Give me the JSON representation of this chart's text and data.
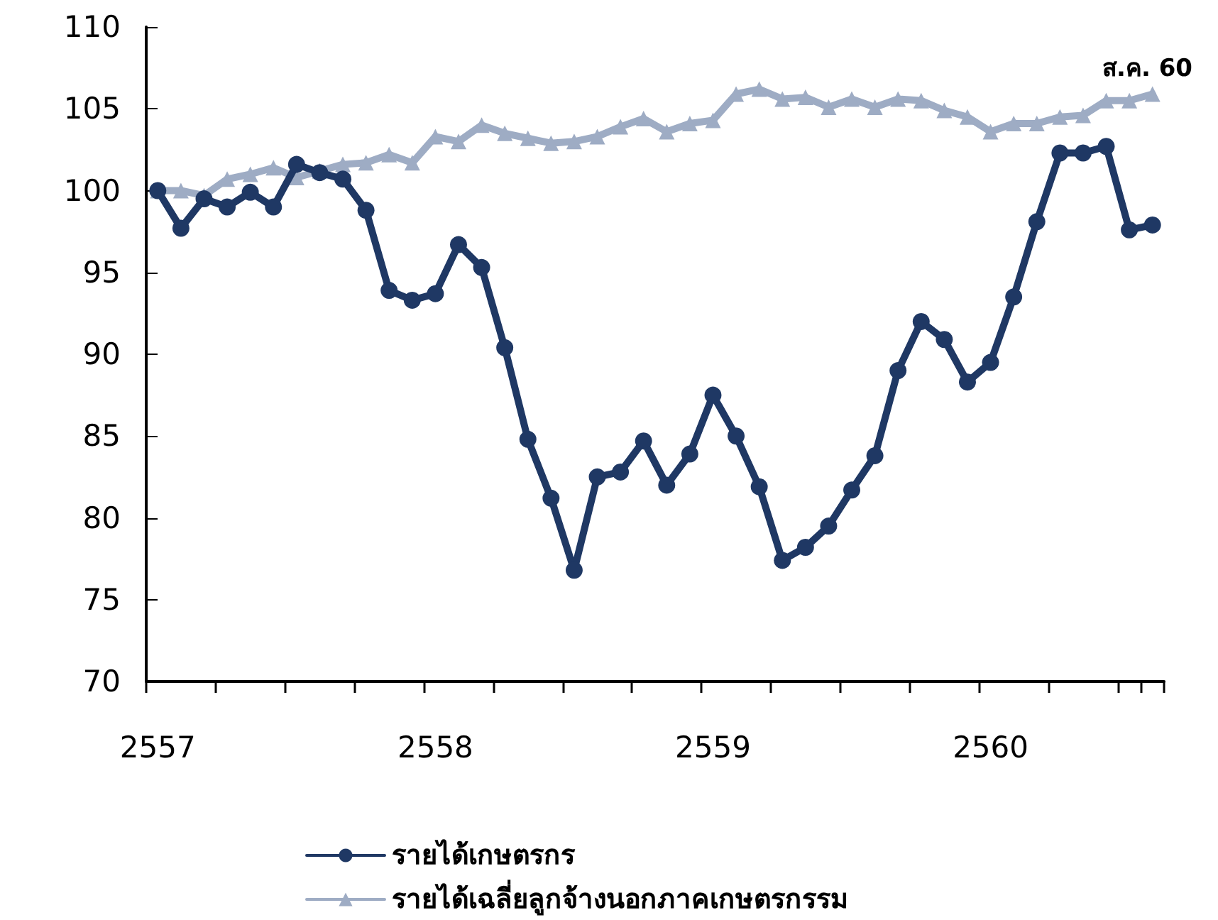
{
  "chart_data": {
    "type": "line",
    "annotations": [
      "ส.ค. 60"
    ],
    "categories": [
      "2557",
      null,
      null,
      null,
      null,
      null,
      null,
      null,
      null,
      null,
      null,
      null,
      "2558",
      null,
      null,
      null,
      null,
      null,
      null,
      null,
      null,
      null,
      null,
      null,
      "2559",
      null,
      null,
      null,
      null,
      null,
      null,
      null,
      null,
      null,
      null,
      null,
      "2560",
      null,
      null,
      null,
      null,
      null,
      null,
      null
    ],
    "series": [
      {
        "name": "รายได้เกษตรกร",
        "color": "#1f3864",
        "marker": "circle",
        "values": [
          100,
          97.7,
          99.5,
          99.0,
          99.9,
          99.0,
          101.6,
          101.1,
          100.7,
          98.8,
          93.9,
          93.3,
          93.7,
          96.7,
          95.3,
          90.4,
          84.8,
          81.2,
          76.8,
          82.5,
          82.8,
          84.7,
          82.0,
          83.9,
          87.5,
          85.0,
          81.9,
          77.4,
          78.2,
          79.5,
          81.7,
          83.8,
          89.0,
          92.0,
          90.9,
          88.3,
          89.5,
          93.5,
          98.1,
          102.3,
          102.3,
          102.7,
          97.6,
          97.9
        ]
      },
      {
        "name": "รายได้เฉลี่ยลูกจ้างนอกภาคเกษตรกรรม",
        "color": "#9eacc4",
        "marker": "triangle",
        "values": [
          100,
          100,
          99.7,
          100.7,
          101.0,
          101.4,
          100.8,
          101.2,
          101.6,
          101.7,
          102.2,
          101.7,
          103.3,
          103.0,
          104.0,
          103.5,
          103.2,
          102.9,
          103.0,
          103.3,
          103.9,
          104.4,
          103.6,
          104.1,
          104.3,
          105.9,
          106.2,
          105.6,
          105.7,
          105.1,
          105.6,
          105.1,
          105.6,
          105.5,
          104.9,
          104.5,
          103.6,
          104.1,
          104.1,
          104.5,
          104.6,
          105.5,
          105.5,
          105.9
        ]
      }
    ],
    "ylim": [
      70,
      110
    ],
    "yticks": [
      70,
      75,
      80,
      85,
      90,
      95,
      100,
      105,
      110
    ],
    "grid": false,
    "legend": "bottom",
    "line_style": "solid"
  }
}
